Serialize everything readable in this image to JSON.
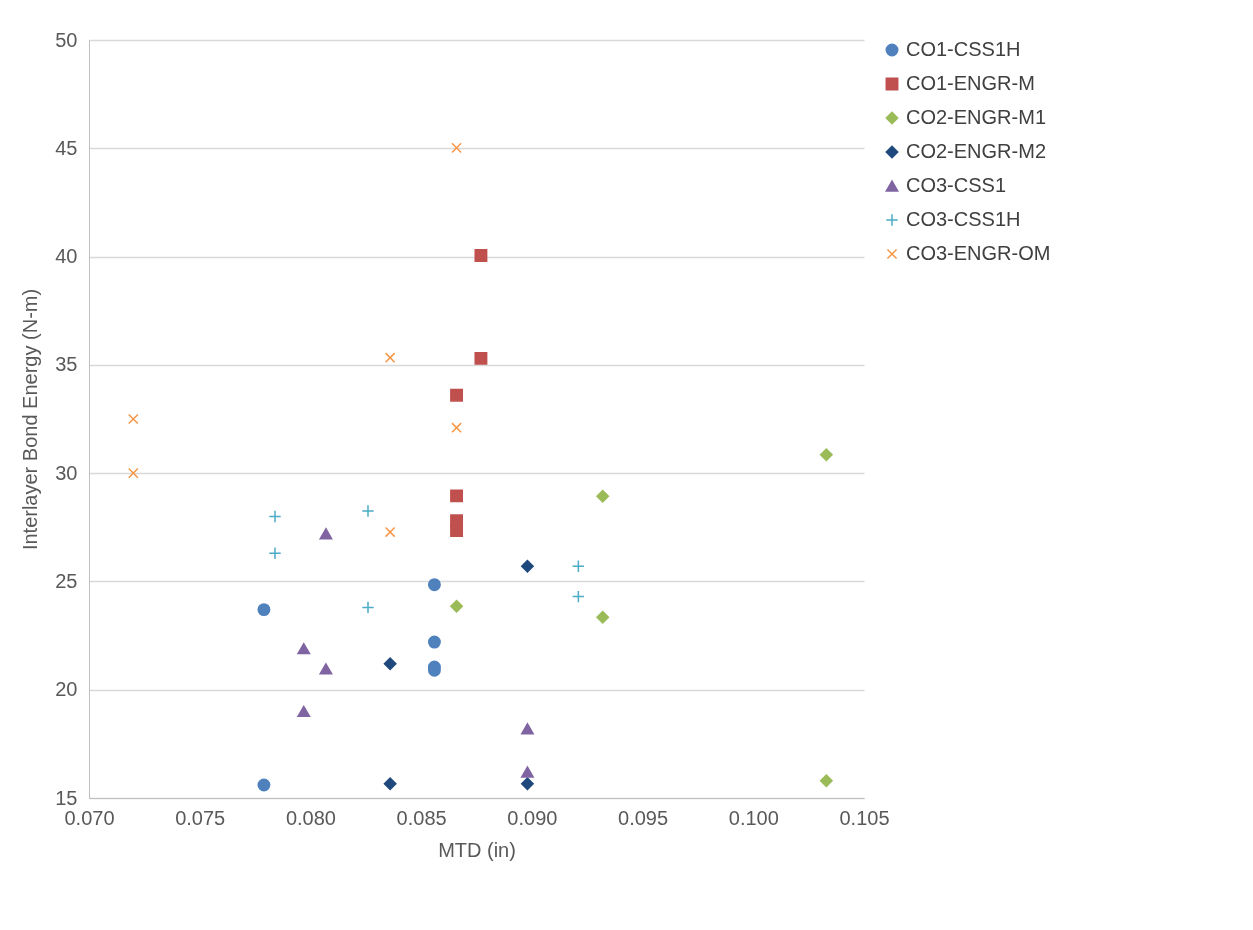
{
  "chart_data": {
    "type": "scatter",
    "xlabel": "MTD (in)",
    "ylabel": "Interlayer Bond Energy (N-m)",
    "xlim": [
      0.07,
      0.105
    ],
    "ylim": [
      15,
      50
    ],
    "xticks": [
      {
        "value": 0.07,
        "label": "0.070"
      },
      {
        "value": 0.075,
        "label": "0.075"
      },
      {
        "value": 0.08,
        "label": "0.080"
      },
      {
        "value": 0.085,
        "label": "0.085"
      },
      {
        "value": 0.09,
        "label": "0.090"
      },
      {
        "value": 0.095,
        "label": "0.095"
      },
      {
        "value": 0.1,
        "label": "0.100"
      },
      {
        "value": 0.105,
        "label": "0.105"
      }
    ],
    "yticks": [
      15,
      20,
      25,
      30,
      35,
      40,
      45,
      50
    ],
    "grid": "y",
    "legend": "right",
    "series": [
      {
        "name": "CO1-CSS1H",
        "color": "#4f81bd",
        "marker": "circle",
        "x": [
          0.0779,
          0.0779,
          0.0856,
          0.0856,
          0.0856,
          0.0856
        ],
        "values": [
          23.7,
          15.6,
          24.85,
          22.2,
          21.05,
          20.9
        ]
      },
      {
        "name": "CO1-ENGR-M",
        "color": "#c0504d",
        "marker": "square",
        "x": [
          0.0877,
          0.0877,
          0.0866,
          0.0866,
          0.0866,
          0.0866
        ],
        "values": [
          40.05,
          35.3,
          33.6,
          28.95,
          27.8,
          27.35
        ]
      },
      {
        "name": "CO2-ENGR-M1",
        "color": "#9bbb59",
        "marker": "diamond",
        "x": [
          0.1033,
          0.0932,
          0.0866,
          0.0932,
          0.1033
        ],
        "values": [
          30.85,
          28.93,
          23.85,
          23.35,
          15.8
        ]
      },
      {
        "name": "CO2-ENGR-M2",
        "color": "#1f497d",
        "marker": "diamond",
        "x": [
          0.0898,
          0.0836,
          0.0836,
          0.0898
        ],
        "values": [
          25.7,
          21.2,
          15.66,
          15.66
        ]
      },
      {
        "name": "CO3-CSS1",
        "color": "#8064a2",
        "marker": "triangle",
        "x": [
          0.0807,
          0.0797,
          0.0807,
          0.0797,
          0.0898,
          0.0898
        ],
        "values": [
          27.2,
          21.9,
          20.96,
          19.0,
          18.2,
          16.2
        ]
      },
      {
        "name": "CO3-CSS1H",
        "color": "#4bacc6",
        "marker": "plus",
        "x": [
          0.0784,
          0.0784,
          0.0826,
          0.0826,
          0.0921,
          0.0921
        ],
        "values": [
          28.0,
          26.3,
          28.25,
          23.8,
          25.7,
          24.3
        ]
      },
      {
        "name": "CO3-ENGR-OM",
        "color": "#f79646",
        "marker": "cross",
        "x": [
          0.072,
          0.072,
          0.0836,
          0.0866,
          0.0866,
          0.0836
        ],
        "values": [
          32.5,
          30.0,
          35.33,
          45.02,
          32.1,
          27.28
        ]
      }
    ]
  }
}
